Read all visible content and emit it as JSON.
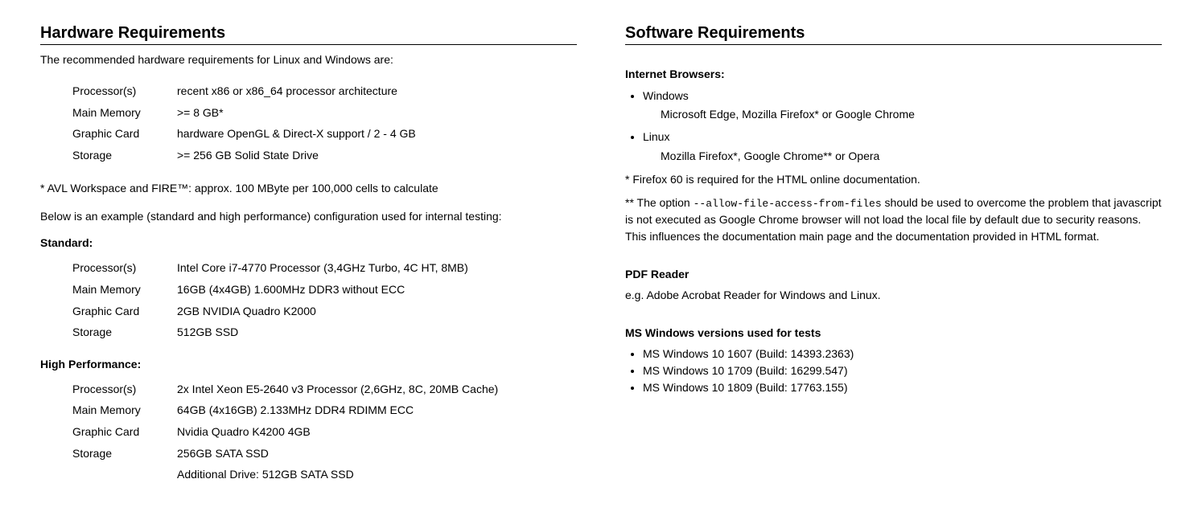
{
  "hardware": {
    "title": "Hardware Requirements",
    "intro": "The recommended hardware requirements for Linux and Windows are:",
    "recommended": {
      "rows": [
        {
          "label": "Processor(s)",
          "value": "recent x86 or x86_64 processor architecture"
        },
        {
          "label": "Main Memory",
          "value": ">= 8 GB*"
        },
        {
          "label": "Graphic Card",
          "value": "hardware OpenGL & Direct-X support / 2 - 4 GB"
        },
        {
          "label": "Storage",
          "value": ">= 256 GB Solid State Drive"
        }
      ]
    },
    "footnote": "* AVL Workspace and FIRE™: approx. 100 MByte per 100,000 cells to calculate",
    "example_intro": "Below is an example (standard and high performance) configuration used for internal testing:",
    "standard_title": "Standard:",
    "standard": {
      "rows": [
        {
          "label": "Processor(s)",
          "value": "Intel Core i7-4770 Processor (3,4GHz Turbo, 4C HT, 8MB)"
        },
        {
          "label": "Main Memory",
          "value": "16GB (4x4GB) 1.600MHz DDR3 without ECC"
        },
        {
          "label": "Graphic Card",
          "value": "2GB NVIDIA Quadro K2000"
        },
        {
          "label": "Storage",
          "value": "512GB SSD"
        }
      ]
    },
    "high_perf_title": "High Performance:",
    "high_perf": {
      "rows": [
        {
          "label": "Processor(s)",
          "value": "2x Intel Xeon E5-2640 v3 Processor (2,6GHz, 8C, 20MB Cache)"
        },
        {
          "label": "Main Memory",
          "value": "64GB (4x16GB) 2.133MHz DDR4 RDIMM ECC"
        },
        {
          "label": "Graphic Card",
          "value": "Nvidia Quadro K4200 4GB"
        },
        {
          "label": "Storage",
          "value": "256GB SATA SSD"
        },
        {
          "label": "",
          "value": "Additional Drive: 512GB SATA SSD"
        }
      ]
    }
  },
  "software": {
    "title": "Software Requirements",
    "browsers_title": "Internet Browsers:",
    "browsers": [
      {
        "os": "Windows",
        "detail": "Microsoft Edge, Mozilla Firefox* or Google Chrome"
      },
      {
        "os": "Linux",
        "detail": "Mozilla Firefox*, Google Chrome** or Opera"
      }
    ],
    "note1": "* Firefox 60 is required for the HTML online documentation.",
    "note2_pre": "** The option ",
    "note2_code": "--allow-file-access-from-files",
    "note2_post": " should be used to overcome the problem that javascript is not executed as Google Chrome browser will not load the local file by default due to security reasons. This influences the documentation main page and the documentation provided in HTML format.",
    "pdf_title": "PDF Reader",
    "pdf_text": "e.g. Adobe Acrobat Reader for Windows and Linux.",
    "win_title": "MS Windows versions used for tests",
    "win_versions": [
      "MS Windows 10 1607 (Build: 14393.2363)",
      "MS Windows 10 1709 (Build: 16299.547)",
      "MS Windows 10 1809 (Build: 17763.155)"
    ]
  }
}
